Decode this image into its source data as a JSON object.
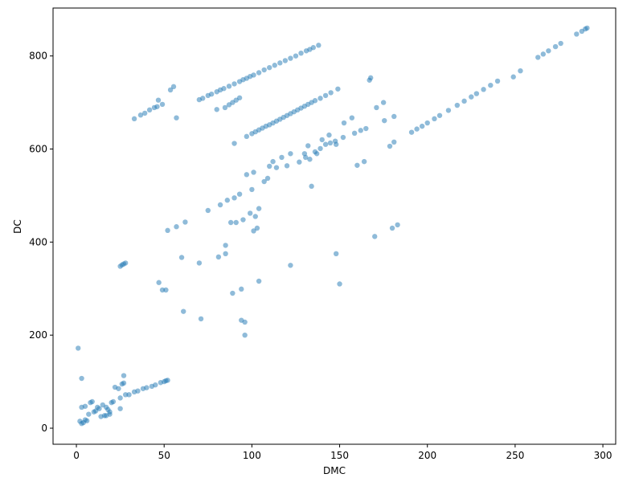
{
  "chart_data": {
    "type": "scatter",
    "xlabel": "DMC",
    "ylabel": "DC",
    "color": "#1f77b4",
    "alpha": 0.5,
    "x": [
      33,
      36.6,
      39,
      41.7,
      44.4,
      46,
      46.7,
      49,
      53.6,
      55.4,
      57,
      70,
      72,
      75,
      77,
      80,
      82,
      84,
      87,
      90,
      93,
      95,
      97,
      99,
      101,
      104,
      107,
      110,
      113,
      116,
      119,
      122,
      125,
      128,
      131,
      133,
      135,
      138,
      80,
      84.7,
      87,
      89,
      91,
      93,
      97,
      100,
      102,
      104,
      106,
      108,
      110,
      112,
      114,
      116,
      118,
      120,
      122,
      124,
      126,
      128,
      130,
      132,
      134,
      136,
      139,
      142,
      145,
      149,
      130.6,
      133,
      136,
      139,
      142,
      144.7,
      147.5,
      152.5,
      157,
      158.5,
      165,
      167,
      167.7,
      171,
      175,
      175.5,
      181,
      181,
      178.6,
      191,
      194,
      197,
      200,
      204,
      207,
      212,
      217,
      221,
      225,
      228,
      232,
      236,
      240,
      249,
      253,
      263,
      266,
      269,
      273,
      276,
      285,
      288,
      290,
      291,
      75,
      82,
      86,
      90,
      93,
      100,
      97,
      101,
      107,
      109,
      110,
      112,
      114,
      117,
      120,
      122,
      127,
      130,
      132,
      134,
      137,
      140,
      144,
      148,
      152,
      160,
      164,
      162,
      90,
      52,
      57,
      62,
      88,
      91,
      95,
      99,
      102,
      101,
      103,
      104,
      60,
      70,
      81,
      85,
      85,
      122,
      148,
      150,
      170,
      180,
      183,
      47,
      49,
      51,
      89,
      94,
      104,
      61,
      71,
      94,
      96,
      96,
      25,
      26,
      27,
      28,
      1,
      3,
      3,
      5,
      2,
      3,
      4,
      5,
      7,
      8,
      9,
      10,
      13,
      14,
      16,
      17,
      18,
      19,
      20,
      21,
      22,
      24,
      25,
      25,
      26,
      27,
      28,
      27,
      30,
      33,
      35,
      38,
      40,
      43,
      45,
      48,
      50,
      51,
      52,
      12,
      15,
      17,
      19,
      6,
      11
    ],
    "values": [
      665,
      673,
      677,
      684,
      689,
      691,
      705,
      696,
      727,
      734,
      667,
      706,
      709,
      715,
      718,
      723,
      727,
      730,
      735,
      740,
      745,
      749,
      752,
      756,
      759,
      764,
      770,
      775,
      780,
      785,
      790,
      795,
      800,
      806,
      811,
      814,
      818,
      823,
      685,
      689,
      695,
      700,
      705,
      710,
      627,
      633,
      637,
      641,
      645,
      649,
      652,
      656,
      660,
      664,
      668,
      672,
      676,
      680,
      684,
      688,
      692,
      696,
      700,
      704,
      709,
      715,
      721,
      729,
      582,
      578,
      594,
      601,
      610,
      613,
      617,
      656,
      667,
      634,
      644,
      748,
      753,
      689,
      700,
      661,
      670,
      615,
      606,
      636,
      643,
      649,
      656,
      665,
      672,
      683,
      694,
      703,
      712,
      719,
      728,
      737,
      746,
      755,
      768,
      797,
      804,
      811,
      820,
      827,
      847,
      853,
      858,
      860,
      468,
      480,
      490,
      495,
      503,
      513,
      545,
      550,
      530,
      537,
      563,
      573,
      560,
      582,
      564,
      590,
      572,
      590,
      607,
      520,
      590,
      620,
      630,
      610,
      625,
      565,
      573,
      640,
      612,
      425,
      433,
      443,
      442,
      442,
      448,
      462,
      455,
      424,
      430,
      472,
      367,
      355,
      368,
      375,
      393,
      350,
      375,
      310,
      412,
      430,
      437,
      313,
      297,
      297,
      290,
      299,
      316,
      251,
      235,
      232,
      228,
      200,
      348,
      351,
      353,
      355,
      172,
      107,
      45,
      47,
      15,
      10,
      12,
      18,
      30,
      55,
      57,
      35,
      42,
      25,
      27,
      45,
      40,
      30,
      55,
      57,
      88,
      85,
      65,
      42,
      95,
      97,
      72,
      113,
      72,
      78,
      80,
      85,
      87,
      90,
      93,
      98,
      100,
      102,
      103,
      45,
      50,
      27,
      35,
      16,
      37
    ],
    "xlim": [
      -13.3,
      307.3
    ],
    "ylim": [
      -34.5,
      903
    ],
    "xticks": [
      0,
      50,
      100,
      150,
      200,
      250,
      300
    ],
    "yticks": [
      0,
      200,
      400,
      600,
      800
    ]
  }
}
